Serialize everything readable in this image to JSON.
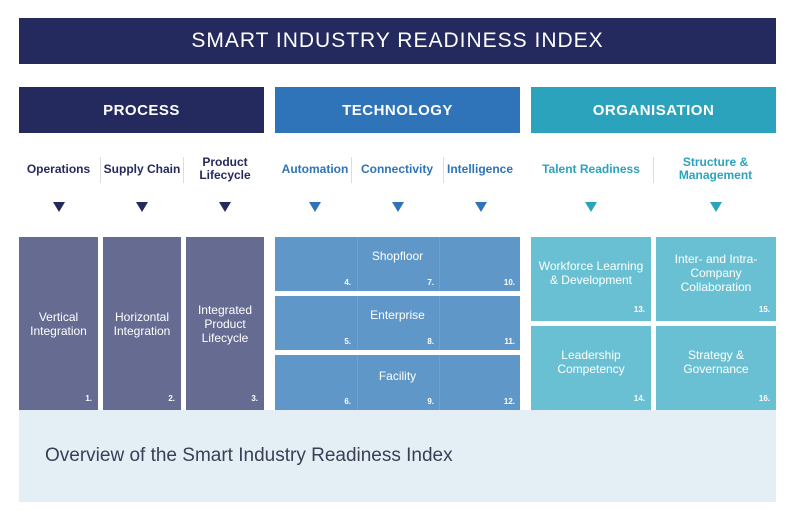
{
  "title": "SMART INDUSTRY READINESS INDEX",
  "pillars": [
    {
      "label": "PROCESS",
      "color": "#252a5e",
      "dimensions": [
        "Operations",
        "Supply Chain",
        "Product Lifecycle"
      ]
    },
    {
      "label": "TECHNOLOGY",
      "color": "#2f73b8",
      "dimensions": [
        "Automation",
        "Connectivity",
        "Intelligence"
      ]
    },
    {
      "label": "ORGANISATION",
      "color": "#2ba3bd",
      "dimensions": [
        "Talent Readiness",
        "Structure & Management"
      ]
    }
  ],
  "process_areas": [
    {
      "label": "Vertical Integration",
      "num": "1."
    },
    {
      "label": "Horizontal Integration",
      "num": "2."
    },
    {
      "label": "Integrated Product Lifecycle",
      "num": "3."
    }
  ],
  "technology_areas": [
    {
      "label": "Shopfloor",
      "nums": [
        "4.",
        "7.",
        "10."
      ]
    },
    {
      "label": "Enterprise",
      "nums": [
        "5.",
        "8.",
        "11."
      ]
    },
    {
      "label": "Facility",
      "nums": [
        "6.",
        "9.",
        "12."
      ]
    }
  ],
  "organisation_areas": [
    {
      "label": "Workforce Learning & Development",
      "num": "13."
    },
    {
      "label": "Inter- and Intra-Company Collaboration",
      "num": "15."
    },
    {
      "label": "Leadership Competency",
      "num": "14."
    },
    {
      "label": "Strategy & Governance",
      "num": "16."
    }
  ],
  "caption": "Overview of the Smart Industry Readiness Index"
}
